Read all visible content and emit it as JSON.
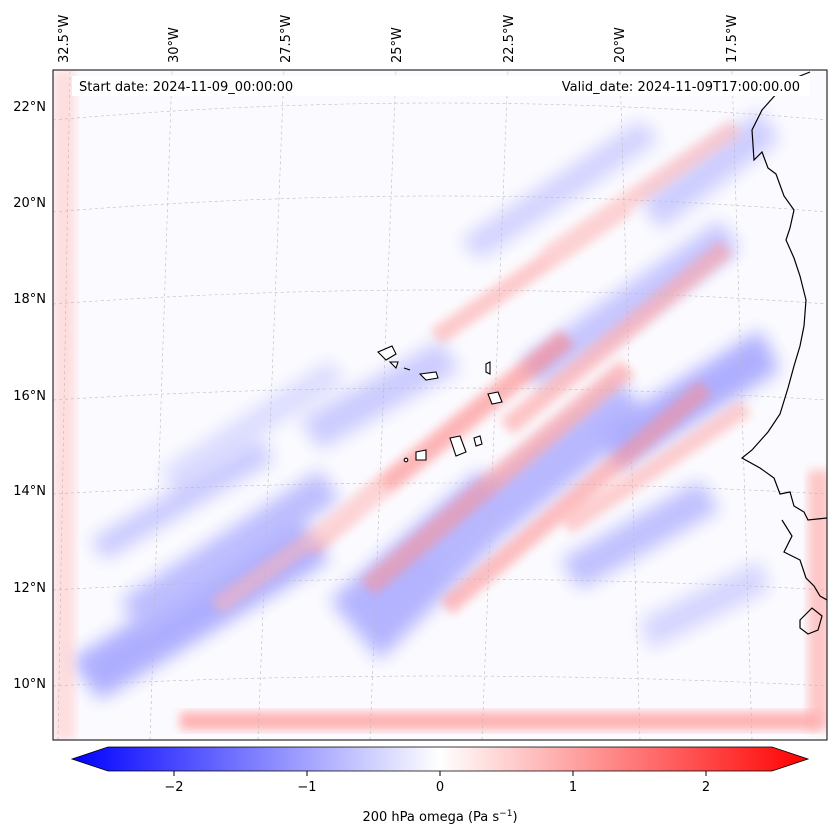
{
  "header": {
    "start_date": "Start date: 2024-11-09_00:00:00",
    "valid_date": "Valid_date: 2024-11-09T17:00:00.00"
  },
  "map": {
    "longitude_labels": [
      "32.5°W",
      "30°W",
      "27.5°W",
      "25°W",
      "22.5°W",
      "20°W",
      "17.5°W"
    ],
    "latitude_labels": [
      "22°N",
      "20°N",
      "18°N",
      "16°N",
      "14°N",
      "12°N",
      "10°N"
    ],
    "field_colors": {
      "negative": "#0000ff",
      "zero": "#ffffff",
      "positive": "#ff0000"
    },
    "coastline_color": "#000000"
  },
  "colorbar": {
    "ticks": [
      "−2",
      "−1",
      "0",
      "1",
      "2"
    ],
    "label": "200 hPa omega (Pa s",
    "label_exponent": "−1",
    "label_suffix": ")",
    "range": [
      -2.6,
      2.6
    ]
  }
}
